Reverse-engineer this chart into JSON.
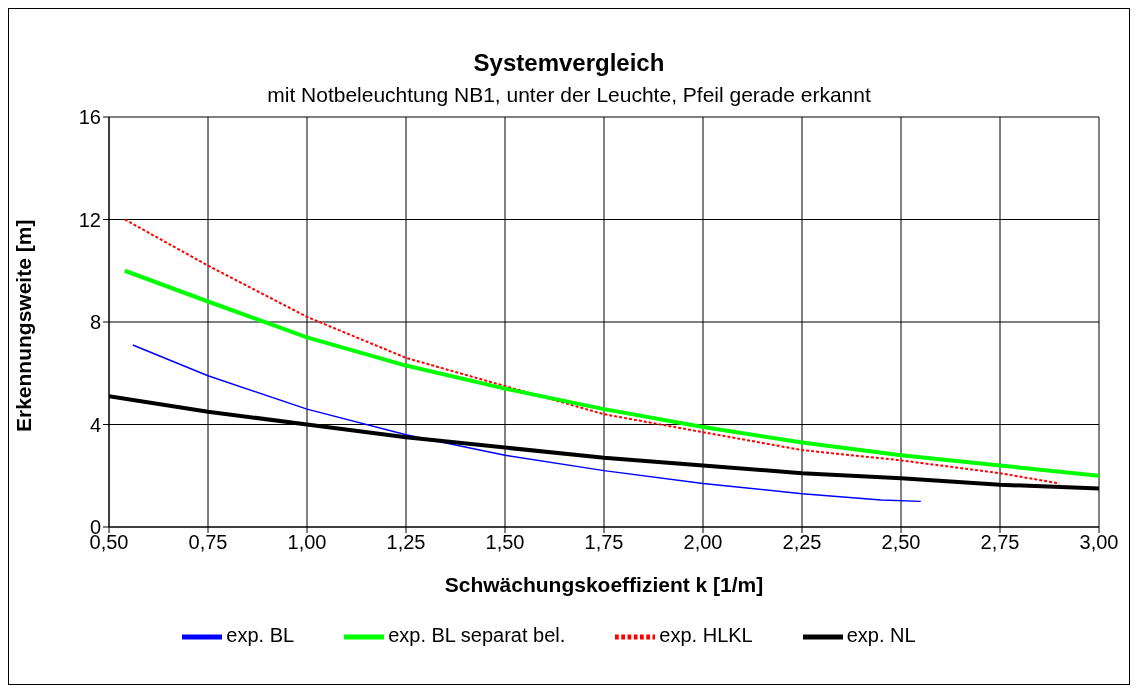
{
  "chart_data": {
    "type": "line",
    "title": "Systemvergleich",
    "subtitle": "mit Notbeleuchtung NB1, unter der Leuchte, Pfeil gerade erkannt",
    "xlabel": "Schwächungskoeffizient k [1/m]",
    "ylabel": "Erkennungsweite [m]",
    "xlim": [
      0.5,
      3.0
    ],
    "xticks": [
      {
        "value": 0.5,
        "label": "0,50"
      },
      {
        "value": 0.75,
        "label": "0,75"
      },
      {
        "value": 1.0,
        "label": "1,00"
      },
      {
        "value": 1.25,
        "label": "1,25"
      },
      {
        "value": 1.5,
        "label": "1,50"
      },
      {
        "value": 1.75,
        "label": "1,75"
      },
      {
        "value": 2.0,
        "label": "2,00"
      },
      {
        "value": 2.25,
        "label": "2,25"
      },
      {
        "value": 2.5,
        "label": "2,50"
      },
      {
        "value": 2.75,
        "label": "2,75"
      },
      {
        "value": 3.0,
        "label": "3,00"
      }
    ],
    "ylim": [
      0,
      16
    ],
    "yticks": [
      0,
      4,
      8,
      12,
      16
    ],
    "grid": true,
    "legend": "bottom",
    "marker": "none",
    "series": [
      {
        "name": "exp. HLKL",
        "color": "#ff0000",
        "line_style": "dotted",
        "x": [
          0.54,
          0.75,
          1.0,
          1.25,
          1.5,
          1.75,
          2.0,
          2.25,
          2.5,
          2.75,
          2.9
        ],
        "values": [
          12.0,
          10.2,
          8.2,
          6.6,
          5.5,
          4.4,
          3.7,
          3.0,
          2.6,
          2.1,
          1.7
        ]
      },
      {
        "name": "exp. BL separat bel.",
        "color": "#00ff00",
        "line_style": "solid",
        "x": [
          0.54,
          0.75,
          1.0,
          1.25,
          1.5,
          1.75,
          2.0,
          2.25,
          2.5,
          2.75,
          3.0
        ],
        "values": [
          10.0,
          8.8,
          7.4,
          6.3,
          5.4,
          4.6,
          3.9,
          3.3,
          2.8,
          2.4,
          2.0
        ]
      },
      {
        "name": "exp. BL",
        "color": "#0000ff",
        "line_style": "solid",
        "x": [
          0.56,
          0.75,
          1.0,
          1.25,
          1.5,
          1.75,
          2.0,
          2.25,
          2.45,
          2.55
        ],
        "values": [
          7.1,
          5.9,
          4.6,
          3.6,
          2.8,
          2.2,
          1.7,
          1.3,
          1.05,
          1.0
        ]
      },
      {
        "name": "exp. NL",
        "color": "#000000",
        "line_style": "solid",
        "x": [
          0.5,
          0.75,
          1.0,
          1.25,
          1.5,
          1.75,
          2.0,
          2.25,
          2.5,
          2.75,
          3.0
        ],
        "values": [
          5.1,
          4.5,
          4.0,
          3.5,
          3.1,
          2.7,
          2.4,
          2.1,
          1.9,
          1.65,
          1.5
        ]
      }
    ]
  }
}
